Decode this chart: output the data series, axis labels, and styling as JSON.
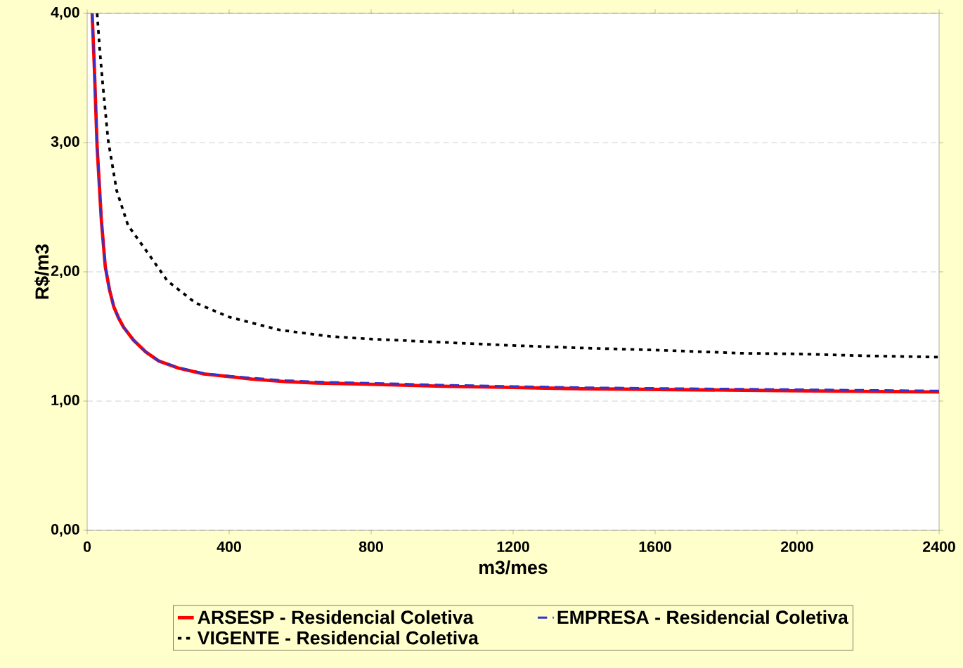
{
  "chart_data": {
    "type": "line",
    "xlabel": "m3/mes",
    "ylabel": "R$/m3",
    "xlim": [
      0,
      2400
    ],
    "ylim": [
      0,
      4
    ],
    "xticks": [
      0,
      400,
      800,
      1200,
      1600,
      2000,
      2400
    ],
    "yticks": [
      {
        "value": 0,
        "label": "0,00"
      },
      {
        "value": 1,
        "label": "1,00"
      },
      {
        "value": 2,
        "label": "2,00"
      },
      {
        "value": 3,
        "label": "3,00"
      },
      {
        "value": 4,
        "label": "4,00"
      }
    ],
    "grid": "y",
    "legend": "bottom",
    "series": [
      {
        "name": "ARSESP - Residencial Coletiva",
        "color": "#ff0000",
        "line_style": "solid",
        "x": [
          14,
          20,
          28,
          40,
          51,
          63,
          75,
          89,
          103,
          131,
          165,
          202,
          257,
          329,
          400,
          463,
          560,
          646,
          800,
          1000,
          1200,
          1400,
          1600,
          1800,
          2000,
          2200,
          2400
        ],
        "values": [
          4.0,
          3.6,
          2.97,
          2.4,
          2.04,
          1.86,
          1.73,
          1.64,
          1.57,
          1.47,
          1.38,
          1.31,
          1.255,
          1.21,
          1.19,
          1.17,
          1.15,
          1.14,
          1.13,
          1.115,
          1.105,
          1.095,
          1.09,
          1.085,
          1.08,
          1.075,
          1.07
        ]
      },
      {
        "name": "EMPRESA - Residencial Coletiva",
        "color": "#3333cc",
        "line_style": "dashed",
        "x": [
          14,
          20,
          28,
          40,
          51,
          63,
          75,
          89,
          103,
          131,
          165,
          202,
          257,
          329,
          400,
          463,
          560,
          646,
          800,
          1000,
          1200,
          1400,
          1600,
          1800,
          2000,
          2200,
          2400
        ],
        "values": [
          4.0,
          3.6,
          2.97,
          2.4,
          2.04,
          1.86,
          1.73,
          1.64,
          1.57,
          1.47,
          1.38,
          1.31,
          1.26,
          1.215,
          1.195,
          1.18,
          1.16,
          1.15,
          1.14,
          1.125,
          1.115,
          1.105,
          1.1,
          1.095,
          1.09,
          1.085,
          1.08
        ]
      },
      {
        "name": "VIGENTE - Residencial Coletiva",
        "color": "#000000",
        "line_style": "dotted",
        "x": [
          28,
          36,
          44,
          59,
          83,
          115,
          170,
          226,
          305,
          400,
          543,
          685,
          800,
          1000,
          1200,
          1404,
          1600,
          1845,
          2000,
          2200,
          2400
        ],
        "values": [
          4.0,
          3.7,
          3.45,
          3.02,
          2.63,
          2.36,
          2.15,
          1.93,
          1.76,
          1.65,
          1.55,
          1.5,
          1.48,
          1.455,
          1.43,
          1.41,
          1.395,
          1.37,
          1.365,
          1.35,
          1.34
        ]
      }
    ]
  }
}
